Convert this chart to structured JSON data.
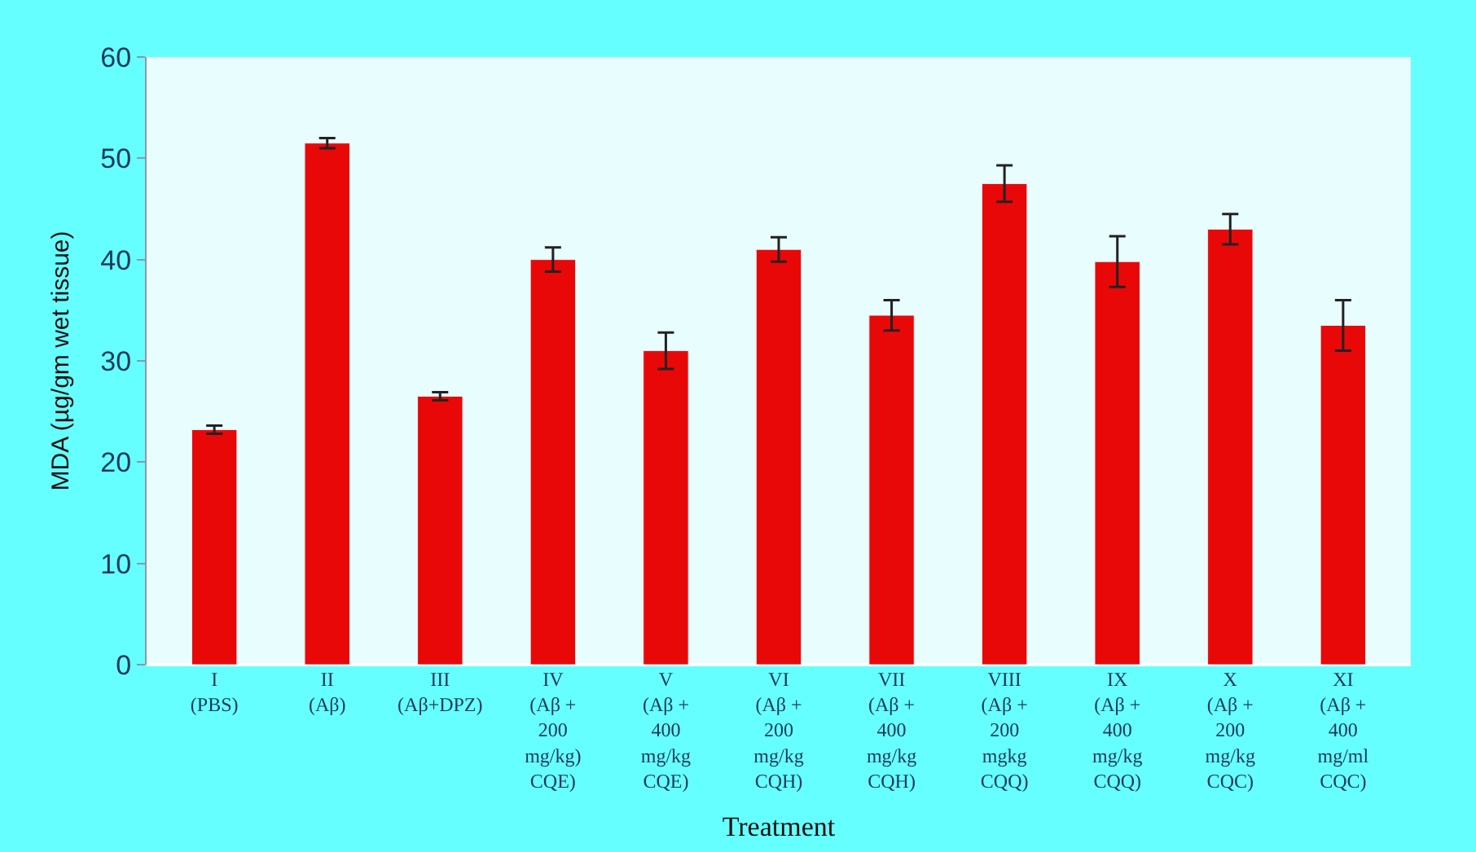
{
  "chart_data": {
    "type": "bar",
    "xlabel": "Treatment",
    "ylabel": "MDA (µg/gm wet tissue)",
    "categories": [
      "I\n(PBS)",
      "II\n(Aβ)",
      "III\n(Aβ+DPZ)",
      "IV\n(Aβ +\n200\nmg/kg)\nCQE)",
      "V\n(Aβ +\n400\nmg/kg\nCQE)",
      "VI\n(Aβ +\n200\nmg/kg\nCQH)",
      "VII\n(Aβ +\n400\nmg/kg\nCQH)",
      "VIII\n(Aβ +\n200\nmgkg\nCQQ)",
      "IX\n(Aβ +\n400\nmg/kg\nCQQ)",
      "X\n(Aβ +\n200\nmg/kg\nCQC)",
      "XI\n(Aβ +\n400\nmg/ml\nCQC)"
    ],
    "values": [
      23.2,
      51.5,
      26.5,
      40,
      31,
      41,
      34.5,
      47.5,
      39.8,
      43,
      33.5
    ],
    "errors": [
      0.4,
      0.5,
      0.4,
      1.2,
      1.8,
      1.2,
      1.5,
      1.8,
      2.5,
      1.5,
      2.5
    ],
    "color": "#e80808",
    "ylim": [
      0,
      60
    ],
    "yticks": [
      0,
      10,
      20,
      30,
      40,
      50,
      60
    ],
    "grid": false,
    "legend": false
  }
}
